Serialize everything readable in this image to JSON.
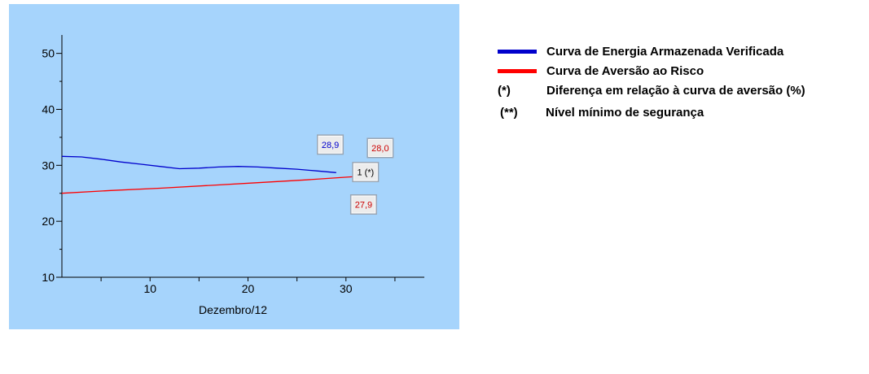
{
  "chart_data": {
    "type": "line",
    "xlabel": "Dezembro/12",
    "ylabel": "",
    "xlim": [
      1,
      38
    ],
    "ylim": [
      10,
      53
    ],
    "x_ticks": [
      10,
      20,
      30
    ],
    "y_ticks": [
      10,
      20,
      30,
      40,
      50
    ],
    "background": "#a6d4fc",
    "grid": false,
    "legend_position": "right",
    "series": [
      {
        "name": "Curva de Energia Armazenada Verificada",
        "color": "#0000cc",
        "x": [
          1,
          3,
          5,
          7,
          9,
          11,
          13,
          15,
          17,
          19,
          21,
          23,
          25,
          27,
          29
        ],
        "y": [
          31.6,
          31.5,
          31.1,
          30.6,
          30.2,
          29.8,
          29.4,
          29.5,
          29.7,
          29.8,
          29.7,
          29.5,
          29.3,
          29.0,
          28.7
        ]
      },
      {
        "name": "Curva de Aversão ao Risco",
        "color": "#ff0000",
        "x": [
          1,
          6,
          11,
          16,
          21,
          26,
          31
        ],
        "y": [
          25.0,
          25.5,
          25.9,
          26.4,
          26.9,
          27.4,
          28.0
        ]
      }
    ],
    "annotations": [
      {
        "text": "28,9",
        "color": "#0000cc",
        "x": 28.4,
        "y": 33.7
      },
      {
        "text": "28,0",
        "color": "#cc0000",
        "x": 33.5,
        "y": 33.1
      },
      {
        "text": "1 (*)",
        "color": "#000000",
        "x": 32.0,
        "y": 28.8
      },
      {
        "text": "27,9",
        "color": "#cc0000",
        "x": 31.8,
        "y": 23.0
      }
    ]
  },
  "legend": {
    "items": [
      {
        "label": "Curva de Energia Armazenada Verificada",
        "color": "#0000cc"
      },
      {
        "label": "Curva de Aversão ao Risco",
        "color": "#ff0000"
      }
    ],
    "notes": [
      {
        "symbol": "(*)",
        "label": "Diferença em relação à curva de aversão (%)"
      },
      {
        "symbol": "(**)",
        "label": "Nível mínimo de segurança"
      }
    ]
  }
}
